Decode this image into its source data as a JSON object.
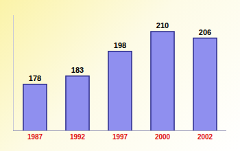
{
  "chart_data": {
    "type": "bar",
    "categories": [
      "1987",
      "1992",
      "1997",
      "2000",
      "2002"
    ],
    "values": [
      178,
      183,
      198,
      210,
      206
    ],
    "color": "#8f8fef",
    "ylim": [
      150,
      220
    ],
    "grid": false,
    "data_labels": true,
    "tick_labels": "x"
  }
}
